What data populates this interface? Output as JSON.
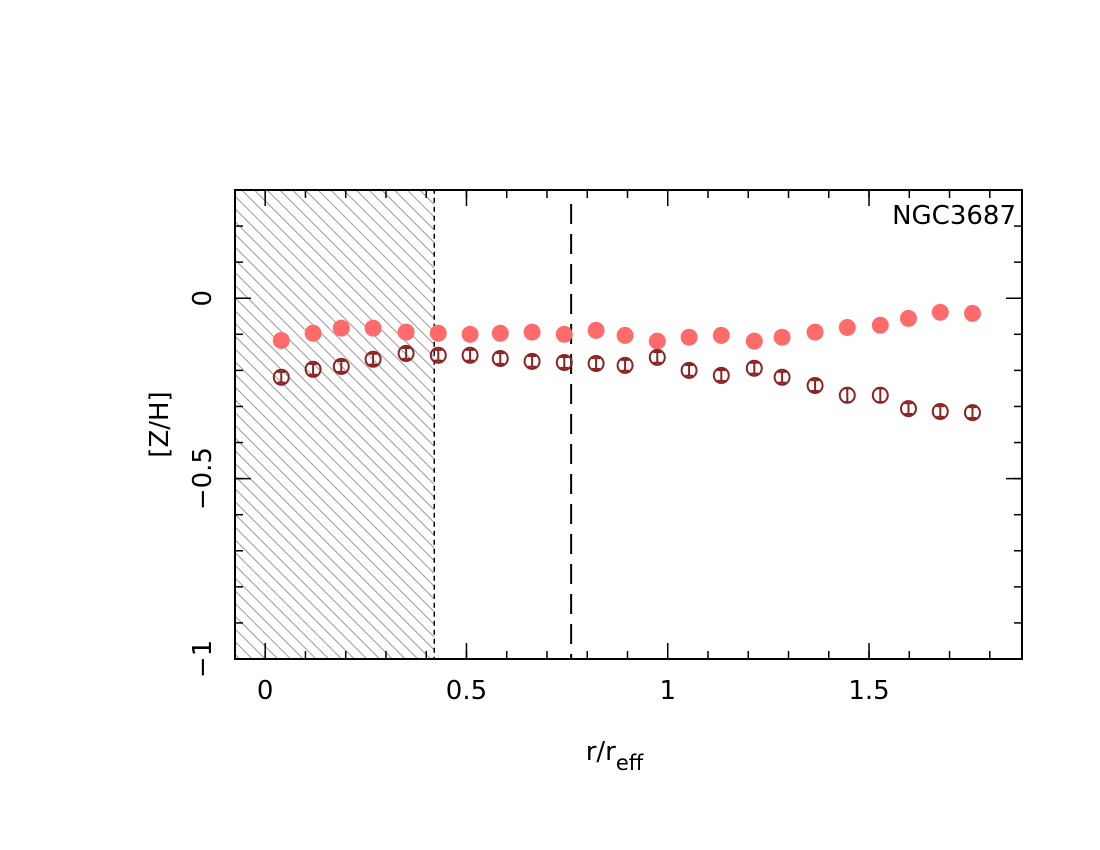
{
  "chart_data": {
    "type": "scatter",
    "annotation": "NGC3687",
    "x_label": "r/r",
    "x_label_sub": "eff",
    "y_label": "[Z/H]",
    "xlim": [
      -0.075,
      1.88
    ],
    "ylim": [
      -1,
      0.3
    ],
    "xticks": [
      0,
      0.5,
      1,
      1.5
    ],
    "yticks": [
      {
        "value": -1,
        "label": "−1"
      },
      {
        "value": -0.5,
        "label": "−0.5"
      },
      0
    ],
    "xminor": 0.1,
    "yminor": 0.1,
    "shade_xlim": [
      -0.075,
      0.42
    ],
    "vline": 0.76,
    "series": [
      {
        "style": "filled",
        "color": "#ff6b6b",
        "x": [
          0.04,
          0.119,
          0.189,
          0.268,
          0.35,
          0.43,
          0.509,
          0.584,
          0.663,
          0.743,
          0.822,
          0.894,
          0.974,
          1.053,
          1.133,
          1.215,
          1.284,
          1.366,
          1.446,
          1.528,
          1.598,
          1.677,
          1.757
        ],
        "values": [
          -0.117,
          -0.097,
          -0.083,
          -0.083,
          -0.094,
          -0.097,
          -0.1,
          -0.097,
          -0.094,
          -0.1,
          -0.089,
          -0.103,
          -0.119,
          -0.108,
          -0.103,
          -0.119,
          -0.108,
          -0.094,
          -0.081,
          -0.075,
          -0.056,
          -0.039,
          -0.042
        ]
      },
      {
        "style": "open",
        "color": "#8b2323",
        "x": [
          0.04,
          0.119,
          0.189,
          0.268,
          0.35,
          0.43,
          0.509,
          0.584,
          0.663,
          0.743,
          0.822,
          0.894,
          0.974,
          1.053,
          1.133,
          1.215,
          1.284,
          1.366,
          1.446,
          1.528,
          1.598,
          1.677,
          1.757
        ],
        "values": [
          -0.219,
          -0.197,
          -0.189,
          -0.169,
          -0.153,
          -0.158,
          -0.158,
          -0.167,
          -0.175,
          -0.178,
          -0.181,
          -0.186,
          -0.164,
          -0.2,
          -0.214,
          -0.194,
          -0.219,
          -0.242,
          -0.269,
          -0.269,
          -0.306,
          -0.314,
          -0.317
        ],
        "errors": [
          0.015,
          0.015,
          0.015,
          0.015,
          0.015,
          0.015,
          0.015,
          0.015,
          0.015,
          0.015,
          0.015,
          0.015,
          0.015,
          0.015,
          0.015,
          0.015,
          0.015,
          0.015,
          0.019,
          0.019,
          0.015,
          0.015,
          0.015
        ]
      }
    ]
  }
}
